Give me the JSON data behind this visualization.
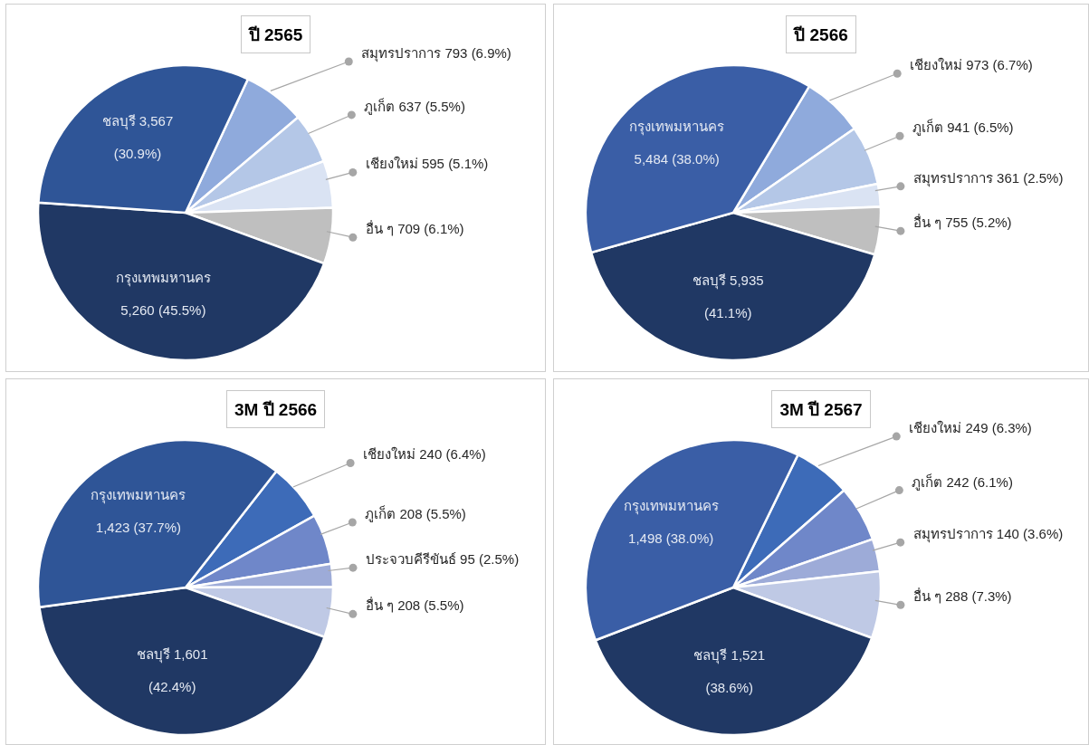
{
  "chart_data": [
    {
      "type": "pie",
      "title": "ปี 2565",
      "categories": [
        "สมุทรปราการ",
        "ภูเก็ต",
        "เชียงใหม่",
        "อื่น ๆ",
        "กรุงเทพมหานคร",
        "ชลบุรี"
      ],
      "values": [
        793,
        637,
        595,
        709,
        5260,
        3567
      ],
      "colors": [
        "#8faadc",
        "#b4c7e7",
        "#dae3f3",
        "#bfbfbf",
        "#203864",
        "#2f5597"
      ],
      "value_labels": [
        "793 (6.9%)",
        "637 (5.5%)",
        "595 (5.1%)",
        "709 (6.1%)",
        "5,260 (45.5%)",
        "3,567 (30.9%)"
      ]
    },
    {
      "type": "pie",
      "title": "ปี 2566",
      "categories": [
        "เชียงใหม่",
        "ภูเก็ต",
        "สมุทรปราการ",
        "อื่น ๆ",
        "ชลบุรี",
        "กรุงเทพมหานคร"
      ],
      "values": [
        973,
        941,
        361,
        755,
        5935,
        5484
      ],
      "colors": [
        "#8faadc",
        "#b4c7e7",
        "#dae3f3",
        "#bfbfbf",
        "#203864",
        "#3a5ea6"
      ],
      "value_labels": [
        "973 (6.7%)",
        "941 (6.5%)",
        "361 (2.5%)",
        "755 (5.2%)",
        "5,935 (41.1%)",
        "5,484 (38.0%)"
      ]
    },
    {
      "type": "pie",
      "title": "3M ปี 2566",
      "categories": [
        "เชียงใหม่",
        "ภูเก็ต",
        "ประจวบคีรีขันธ์",
        "อื่น ๆ",
        "ชลบุรี",
        "กรุงเทพมหานคร"
      ],
      "values": [
        240,
        208,
        95,
        208,
        1601,
        1423
      ],
      "colors": [
        "#3d6bb8",
        "#6f87c9",
        "#9dabd8",
        "#bfc9e5",
        "#203864",
        "#2f5597"
      ],
      "value_labels": [
        "240 (6.4%)",
        "208 (5.5%)",
        "95 (2.5%)",
        "208 (5.5%)",
        "1,601 (42.4%)",
        "1,423 (37.7%)"
      ]
    },
    {
      "type": "pie",
      "title": "3M ปี 2567",
      "categories": [
        "เชียงใหม่",
        "ภูเก็ต",
        "สมุทรปราการ",
        "อื่น ๆ",
        "ชลบุรี",
        "กรุงเทพมหานคร"
      ],
      "values": [
        249,
        242,
        140,
        288,
        1521,
        1498
      ],
      "colors": [
        "#3d6bb8",
        "#6f87c9",
        "#9dabd8",
        "#bfc9e5",
        "#203864",
        "#3a5ea6"
      ],
      "value_labels": [
        "249 (6.3%)",
        "242 (6.1%)",
        "140 (3.6%)",
        "288 (7.3%)",
        "1,521 (38.6%)",
        "1,498 (38.0%)"
      ]
    }
  ]
}
